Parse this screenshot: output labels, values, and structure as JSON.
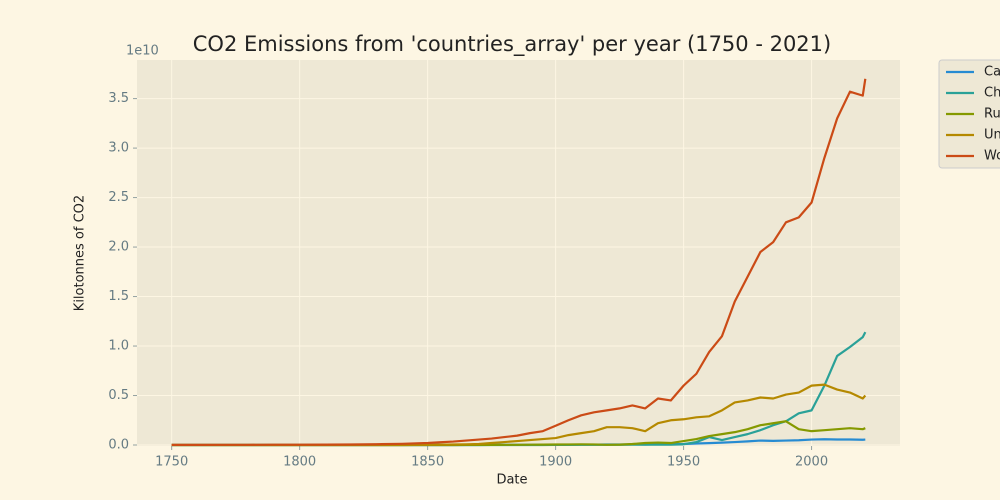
{
  "chart_data": {
    "type": "line",
    "title": "CO2 Emissions from 'countries_array' per year (1750 - 2021)",
    "x_label": "Date",
    "y_label": "Kilotonnes of CO2",
    "y_offset": "1e10",
    "x": [
      1750,
      1760,
      1770,
      1780,
      1790,
      1800,
      1810,
      1820,
      1830,
      1840,
      1850,
      1855,
      1860,
      1865,
      1870,
      1875,
      1880,
      1885,
      1890,
      1895,
      1900,
      1905,
      1910,
      1915,
      1920,
      1925,
      1930,
      1935,
      1940,
      1945,
      1950,
      1955,
      1960,
      1965,
      1970,
      1975,
      1980,
      1985,
      1990,
      1995,
      2000,
      2005,
      2010,
      2015,
      2020,
      2021
    ],
    "series": [
      {
        "name": "Ca",
        "color": "#268bd2",
        "values": [
          0,
          0,
          0,
          0,
          0,
          0,
          0,
          0,
          0,
          0,
          0,
          0,
          0,
          0,
          0,
          0.001,
          0.001,
          0.001,
          0.001,
          0.001,
          0.002,
          0.003,
          0.004,
          0.004,
          0.005,
          0.005,
          0.006,
          0.005,
          0.007,
          0.008,
          0.01,
          0.015,
          0.019,
          0.024,
          0.03,
          0.037,
          0.045,
          0.042,
          0.045,
          0.048,
          0.055,
          0.058,
          0.056,
          0.056,
          0.053,
          0.055
        ]
      },
      {
        "name": "Ch",
        "color": "#2aa198",
        "values": [
          0,
          0,
          0,
          0,
          0,
          0,
          0,
          0,
          0,
          0,
          0,
          0,
          0,
          0,
          0,
          0,
          0,
          0,
          0,
          0,
          0.001,
          0.001,
          0.002,
          0.002,
          0.002,
          0.002,
          0.003,
          0.003,
          0.004,
          0.003,
          0.008,
          0.03,
          0.08,
          0.05,
          0.08,
          0.11,
          0.15,
          0.2,
          0.24,
          0.32,
          0.35,
          0.6,
          0.9,
          0.99,
          1.09,
          1.14
        ]
      },
      {
        "name": "Ru",
        "color": "#859900",
        "values": [
          0,
          0,
          0,
          0,
          0,
          0,
          0,
          0,
          0,
          0,
          0,
          0,
          0,
          0.001,
          0.001,
          0.001,
          0.002,
          0.002,
          0.003,
          0.004,
          0.005,
          0.006,
          0.007,
          0.006,
          0.002,
          0.004,
          0.01,
          0.02,
          0.025,
          0.02,
          0.04,
          0.06,
          0.09,
          0.11,
          0.13,
          0.16,
          0.2,
          0.22,
          0.24,
          0.16,
          0.14,
          0.15,
          0.16,
          0.17,
          0.16,
          0.17
        ]
      },
      {
        "name": "Un",
        "color": "#b58900",
        "values": [
          0,
          0,
          0,
          0,
          0,
          0,
          0,
          0,
          0.0001,
          0.0003,
          0.002,
          0.003,
          0.005,
          0.007,
          0.01,
          0.02,
          0.03,
          0.04,
          0.05,
          0.06,
          0.07,
          0.1,
          0.12,
          0.14,
          0.18,
          0.18,
          0.17,
          0.14,
          0.22,
          0.25,
          0.26,
          0.28,
          0.29,
          0.35,
          0.43,
          0.45,
          0.48,
          0.47,
          0.51,
          0.53,
          0.6,
          0.61,
          0.56,
          0.53,
          0.47,
          0.5
        ]
      },
      {
        "name": "Wo",
        "color": "#cb4b16",
        "values": [
          0.001,
          0.001,
          0.002,
          0.002,
          0.003,
          0.003,
          0.004,
          0.005,
          0.008,
          0.012,
          0.02,
          0.028,
          0.035,
          0.045,
          0.055,
          0.065,
          0.08,
          0.095,
          0.12,
          0.14,
          0.195,
          0.25,
          0.3,
          0.33,
          0.35,
          0.37,
          0.4,
          0.37,
          0.47,
          0.45,
          0.6,
          0.72,
          0.94,
          1.1,
          1.45,
          1.7,
          1.95,
          2.05,
          2.25,
          2.3,
          2.45,
          2.9,
          3.3,
          3.57,
          3.53,
          3.7
        ]
      }
    ],
    "xlim": [
      1736.45,
      2034.55
    ],
    "xticks": [
      1750,
      1800,
      1850,
      1900,
      1950,
      2000
    ],
    "ylim": [
      -0.01,
      3.89
    ],
    "yticks": [
      {
        "value": 0,
        "label": "0.0"
      },
      0.5,
      {
        "value": 1,
        "label": "1.0"
      },
      1.5,
      {
        "value": 2,
        "label": "2.0"
      },
      2.5,
      {
        "value": 3,
        "label": "3.0"
      },
      3.5
    ],
    "grid": true,
    "legend": "outside-upper-right"
  }
}
